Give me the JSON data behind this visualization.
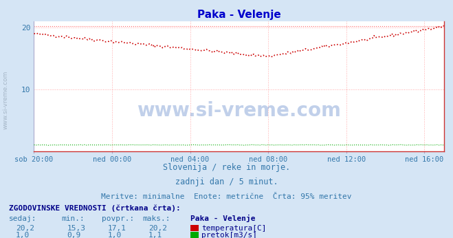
{
  "title": "Paka - Velenje",
  "title_color": "#0000cc",
  "bg_color": "#d5e5f5",
  "plot_bg_color": "#ffffff",
  "x_tick_labels": [
    "sob 20:00",
    "ned 00:00",
    "ned 04:00",
    "ned 08:00",
    "ned 12:00",
    "ned 16:00"
  ],
  "x_tick_positions": [
    0,
    48,
    96,
    144,
    192,
    240
  ],
  "x_max": 252,
  "ylim": [
    0,
    21
  ],
  "y_ticks": [
    10,
    20
  ],
  "temp_color": "#cc0000",
  "flow_color": "#00aa00",
  "grid_h_color": "#ffaaaa",
  "grid_v_color": "#ffaaaa",
  "max_line_color": "#ff6666",
  "watermark_text": "www.si-vreme.com",
  "watermark_color": "#3366bb",
  "sidewatermark_color": "#99aabb",
  "subtitle1": "Slovenija / reke in morje.",
  "subtitle2": "zadnji dan / 5 minut.",
  "subtitle3": "Meritve: minimalne  Enote: metrične  Črta: 95% meritev",
  "subtitle_color": "#3377aa",
  "table_header": "ZGODOVINSKE VREDNOSTI (črtkana črta):",
  "col_headers": [
    "sedaj:",
    "min.:",
    "povpr.:",
    "maks.:",
    "Paka - Velenje"
  ],
  "row1_values": [
    "20,2",
    "15,3",
    "17,1",
    "20,2"
  ],
  "row1_label": "temperatura[C]",
  "row1_color": "#cc0000",
  "row2_values": [
    "1,0",
    "0,9",
    "1,0",
    "1,1"
  ],
  "row2_label": "pretok[m3/s]",
  "row2_color": "#00aa00",
  "table_value_color": "#3377aa",
  "table_header_color": "#000088",
  "table_bold_color": "#000088"
}
